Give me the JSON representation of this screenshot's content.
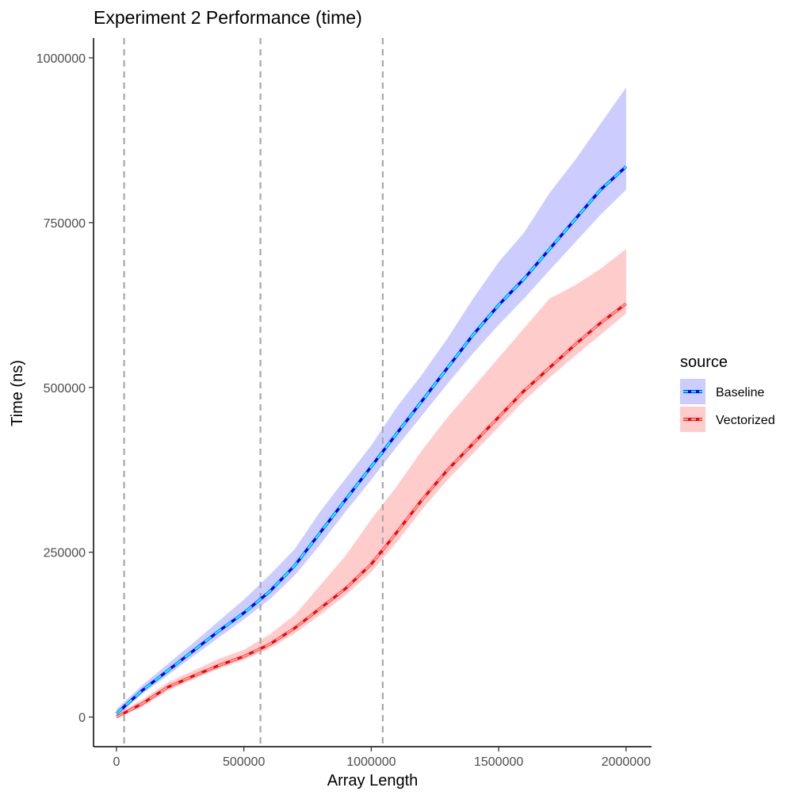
{
  "chart_data": {
    "type": "line",
    "title": "Experiment 2 Performance (time)",
    "xlabel": "Array Length",
    "ylabel": "Time (ns)",
    "xlim": [
      -90000,
      2100000
    ],
    "ylim": [
      -45000,
      1030000
    ],
    "xticks": [
      0,
      500000,
      1000000,
      1500000,
      2000000
    ],
    "xtick_labels": [
      "0",
      "500000",
      "1000000",
      "1500000",
      "2000000"
    ],
    "yticks": [
      0,
      250000,
      500000,
      750000,
      1000000
    ],
    "ytick_labels": [
      "0",
      "250000",
      "500000",
      "750000",
      "1000000"
    ],
    "vlines": [
      30000,
      565000,
      1045000
    ],
    "grid": false,
    "legend": {
      "title": "source",
      "position": "right"
    },
    "series": [
      {
        "name": "Baseline",
        "color": "#0000ff",
        "fit_color": "#00ffff",
        "band_color": "#ccccff",
        "x": [
          0,
          100000,
          200000,
          300000,
          400000,
          500000,
          600000,
          700000,
          800000,
          900000,
          1000000,
          1100000,
          1200000,
          1300000,
          1400000,
          1500000,
          1600000,
          1700000,
          1800000,
          1900000,
          2000000
        ],
        "y": [
          5000,
          40000,
          70000,
          100000,
          130000,
          158000,
          190000,
          230000,
          280000,
          330000,
          380000,
          430000,
          480000,
          530000,
          580000,
          625000,
          665000,
          710000,
          755000,
          800000,
          835000
        ],
        "band_low": [
          0,
          35000,
          63000,
          92000,
          120000,
          148000,
          178000,
          215000,
          262000,
          312000,
          360000,
          410000,
          458000,
          506000,
          552000,
          595000,
          635000,
          678000,
          720000,
          762000,
          800000
        ],
        "band_high": [
          12000,
          48000,
          80000,
          112000,
          145000,
          178000,
          215000,
          255000,
          312000,
          362000,
          412000,
          470000,
          520000,
          575000,
          635000,
          690000,
          735000,
          795000,
          845000,
          900000,
          955000
        ]
      },
      {
        "name": "Vectorized",
        "color": "#ff0000",
        "fit_color": "#ff9999",
        "band_color": "#ffcccc",
        "x": [
          0,
          100000,
          200000,
          300000,
          400000,
          500000,
          600000,
          700000,
          800000,
          900000,
          1000000,
          1100000,
          1200000,
          1300000,
          1400000,
          1500000,
          1600000,
          1700000,
          1800000,
          1900000,
          2000000
        ],
        "y": [
          0,
          20000,
          45000,
          62000,
          78000,
          92000,
          110000,
          135000,
          165000,
          195000,
          232000,
          280000,
          330000,
          375000,
          415000,
          455000,
          495000,
          530000,
          565000,
          598000,
          627000
        ],
        "band_low": [
          0,
          15000,
          40000,
          57000,
          73000,
          87000,
          104000,
          127000,
          155000,
          185000,
          220000,
          265000,
          315000,
          360000,
          400000,
          440000,
          480000,
          515000,
          548000,
          580000,
          612000
        ],
        "band_high": [
          5000,
          26000,
          52000,
          70000,
          88000,
          102000,
          125000,
          155000,
          200000,
          245000,
          300000,
          350000,
          405000,
          455000,
          500000,
          545000,
          590000,
          635000,
          655000,
          680000,
          710000
        ]
      }
    ]
  }
}
